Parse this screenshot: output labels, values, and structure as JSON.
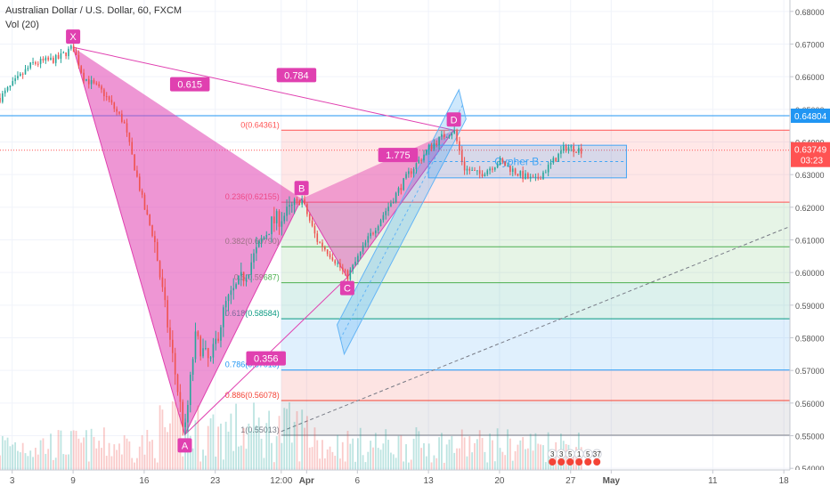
{
  "header": {
    "title": "Australian Dollar / U.S. Dollar, 60, FXCM",
    "volume_label": "Vol (20)"
  },
  "chart_data": {
    "type": "candlestick",
    "ylim": [
      0.5395,
      0.6835
    ],
    "y_ticks": [
      "0.68000",
      "0.67000",
      "0.66000",
      "0.65000",
      "0.64000",
      "0.63000",
      "0.62000",
      "0.61000",
      "0.60000",
      "0.59000",
      "0.58000",
      "0.57000",
      "0.56000",
      "0.55000",
      "0.54000"
    ],
    "x_ticks": [
      {
        "label": "3",
        "day": -6
      },
      {
        "label": "9",
        "day": 0
      },
      {
        "label": "16",
        "day": 7
      },
      {
        "label": "23",
        "day": 14
      },
      {
        "label": "12:00",
        "day": 20.5
      },
      {
        "label": "Apr",
        "day": 23
      },
      {
        "label": "6",
        "day": 28
      },
      {
        "label": "13",
        "day": 35
      },
      {
        "label": "20",
        "day": 42
      },
      {
        "label": "27",
        "day": 49
      },
      {
        "label": "May",
        "day": 53
      },
      {
        "label": "11",
        "day": 63
      },
      {
        "label": "18",
        "day": 70
      }
    ],
    "xlim_days": [
      -7.2,
      70.6
    ],
    "grid": true,
    "last_price": {
      "value": 0.63749,
      "label": "0.63749",
      "timer": "03:23",
      "color": "#ff5252"
    },
    "h_level": {
      "value": 0.64804,
      "label": "0.64804",
      "color": "#2196f3"
    },
    "pattern": {
      "name": "Cypher",
      "color": "#e040b0",
      "points": [
        {
          "label": "X",
          "day": 0,
          "price": 0.669
        },
        {
          "label": "A",
          "day": 11,
          "price": 0.5503
        },
        {
          "label": "B",
          "day": 22.5,
          "price": 0.6226
        },
        {
          "label": "C",
          "day": 27,
          "price": 0.5985
        },
        {
          "label": "D",
          "day": 37.5,
          "price": 0.6436
        }
      ],
      "ratios": [
        {
          "label": "0.615",
          "day": 11.5,
          "price": 0.6577
        },
        {
          "label": "0.784",
          "day": 22,
          "price": 0.6605
        },
        {
          "label": "1.775",
          "day": 32,
          "price": 0.636
        },
        {
          "label": "0.356",
          "day": 19,
          "price": 0.5737
        }
      ]
    },
    "fib": {
      "levels": [
        {
          "label": "0(0.64361)",
          "value": 0.64361,
          "color": "#ff5252"
        },
        {
          "label": "0.236(0.62155)",
          "value": 0.62155,
          "color": "#ff5252"
        },
        {
          "label": "0.382(0.60790)",
          "value": 0.6079,
          "color": "#4caf50"
        },
        {
          "label": "0.5(0.59687)",
          "value": 0.59687,
          "color": "#4caf50"
        },
        {
          "label": "0.618(0.58584)",
          "value": 0.58584,
          "color": "#089981"
        },
        {
          "label": "0.786(0.57013)",
          "value": 0.57013,
          "color": "#2196f3"
        },
        {
          "label": "0.886(0.56078)",
          "value": 0.56078,
          "color": "#f44336"
        },
        {
          "label": "1(0.55013)",
          "value": 0.55013,
          "color": "#787b86"
        }
      ]
    },
    "channel_label": "Cypher B.",
    "event_badges": [
      "3",
      "3",
      "5",
      "1",
      "5",
      "37"
    ]
  }
}
